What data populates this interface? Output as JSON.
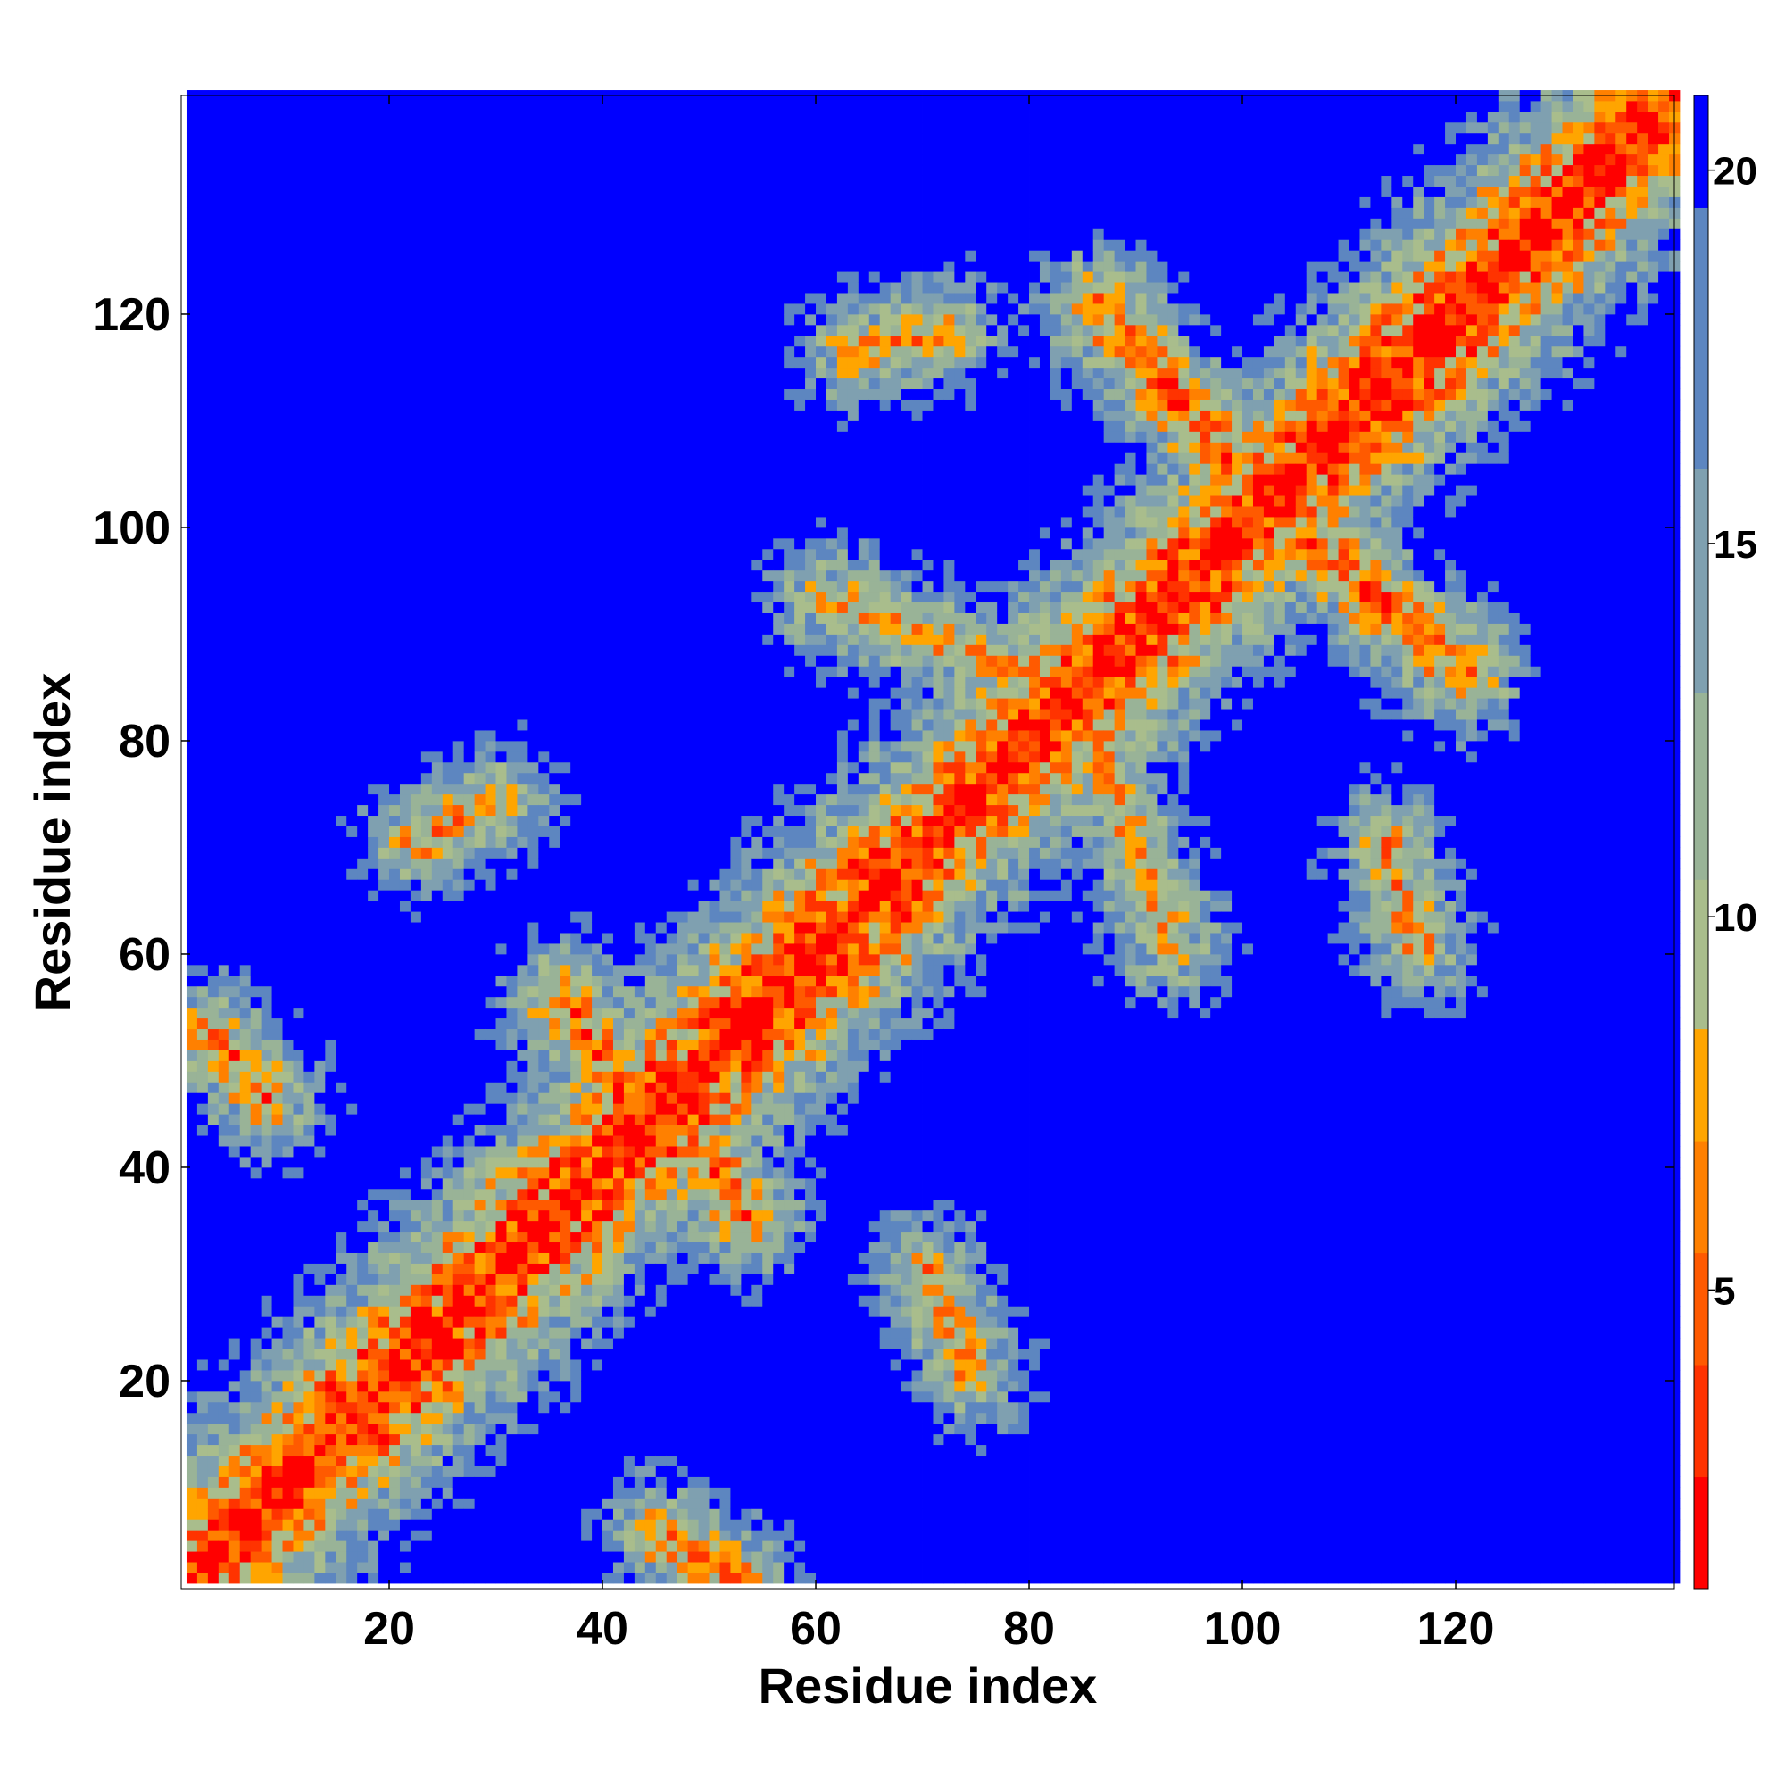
{
  "chart_data": {
    "type": "heatmap",
    "title": "",
    "xlabel": "Residue index",
    "ylabel": "Residue index",
    "x_range": [
      1,
      140
    ],
    "y_range": [
      1,
      140
    ],
    "x_ticks": [
      20,
      40,
      60,
      80,
      100,
      120
    ],
    "y_ticks": [
      20,
      40,
      60,
      80,
      100,
      120
    ],
    "colorbar": {
      "range": [
        1,
        21
      ],
      "ticks": [
        5,
        10,
        15,
        20
      ],
      "colors": [
        "#ff0000",
        "#ff3300",
        "#ff5a00",
        "#ff8000",
        "#ffa500",
        "#a9bd8c",
        "#99b397",
        "#7fa0b0",
        "#5d86c0",
        "#0000ff"
      ],
      "bounds": [
        1,
        2.5,
        4,
        5.5,
        7,
        8.5,
        10.5,
        13,
        16,
        19.5,
        21
      ]
    },
    "grid": false,
    "description_of_values": "symmetric residue-residue distance map; low values (red) along main diagonal, secondary-structure contacts as orange bands, large distances (blue) elsewhere",
    "contact_bands": [
      {
        "from": [
          3,
          52
        ],
        "to": [
          8,
          46
        ],
        "value": 6
      },
      {
        "from": [
          45,
          5
        ],
        "to": [
          52,
          1
        ],
        "value": 6
      },
      {
        "from": [
          36,
          55
        ],
        "to": [
          42,
          46
        ],
        "value": 5
      },
      {
        "from": [
          47,
          44
        ],
        "to": [
          53,
          35
        ],
        "value": 5
      },
      {
        "from": [
          86,
          120
        ],
        "to": [
          98,
          106
        ],
        "value": 5
      },
      {
        "from": [
          106,
          98
        ],
        "to": [
          120,
          86
        ],
        "value": 5
      },
      {
        "from": [
          60,
          93
        ],
        "to": [
          78,
          86
        ],
        "value": 7
      },
      {
        "from": [
          86,
          78
        ],
        "to": [
          93,
          60
        ],
        "value": 7
      },
      {
        "from": [
          22,
          70
        ],
        "to": [
          30,
          74
        ],
        "value": 7
      },
      {
        "from": [
          70,
          30
        ],
        "to": [
          74,
          20
        ],
        "value": 7
      },
      {
        "from": [
          63,
          116
        ],
        "to": [
          72,
          118
        ],
        "value": 7
      },
      {
        "from": [
          113,
          70
        ],
        "to": [
          116,
          60
        ],
        "value": 7
      }
    ]
  }
}
